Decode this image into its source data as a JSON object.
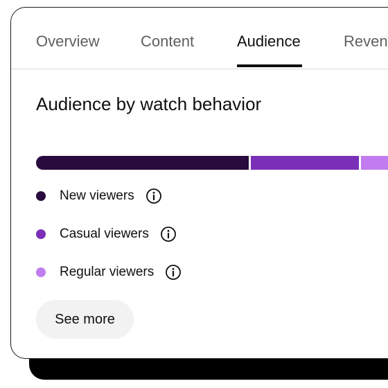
{
  "tabs": [
    {
      "label": "Overview",
      "active": false
    },
    {
      "label": "Content",
      "active": false
    },
    {
      "label": "Audience",
      "active": true
    },
    {
      "label": "Reven",
      "active": false
    }
  ],
  "section": {
    "title": "Audience by watch behavior"
  },
  "watch_behavior": {
    "segments": [
      {
        "name": "New viewers",
        "share": 0.57,
        "color": "#2a0b3d"
      },
      {
        "name": "Casual viewers",
        "share": 0.29,
        "color": "#7b2fb8"
      },
      {
        "name": "Regular viewers",
        "share": 0.14,
        "color": "#c17df0"
      }
    ]
  },
  "legend": [
    {
      "label": "New viewers",
      "color": "#2a0b3d",
      "icon": "info-icon"
    },
    {
      "label": "Casual viewers",
      "color": "#7b2fb8",
      "icon": "info-icon"
    },
    {
      "label": "Regular viewers",
      "color": "#c17df0",
      "icon": "info-icon"
    }
  ],
  "actions": {
    "see_more_label": "See more"
  }
}
